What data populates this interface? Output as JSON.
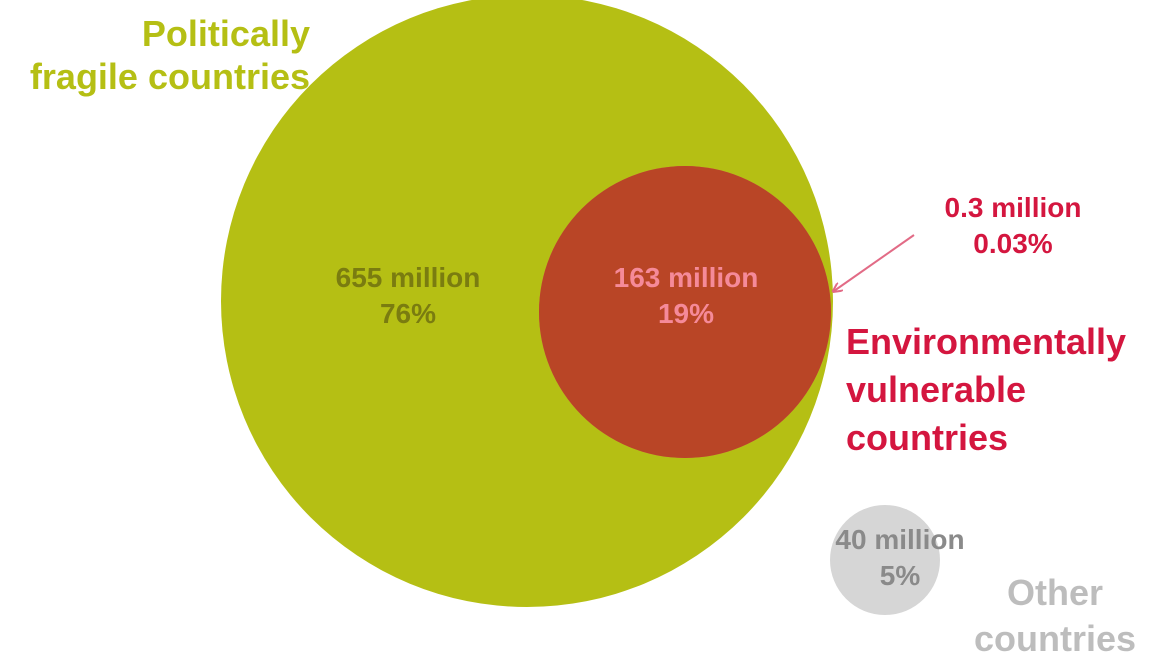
{
  "sets": {
    "political": {
      "title_line1": "Politically",
      "title_line2": "fragile countries",
      "value": "655 million",
      "share": "76%",
      "color": "#b5bf14"
    },
    "overlap": {
      "value": "163 million",
      "share": "19%",
      "color": "#b94526"
    },
    "environmental": {
      "title_line1": "Environmentally",
      "title_line2": "vulnerable",
      "title_line3": "countries",
      "value": "0.3 million",
      "share": "0.03%",
      "color": "#d4163f"
    },
    "other": {
      "title_line1": "Other",
      "title_line2": "countries",
      "value": "40 million",
      "share": "5%",
      "color": "#d6d6d6"
    }
  }
}
